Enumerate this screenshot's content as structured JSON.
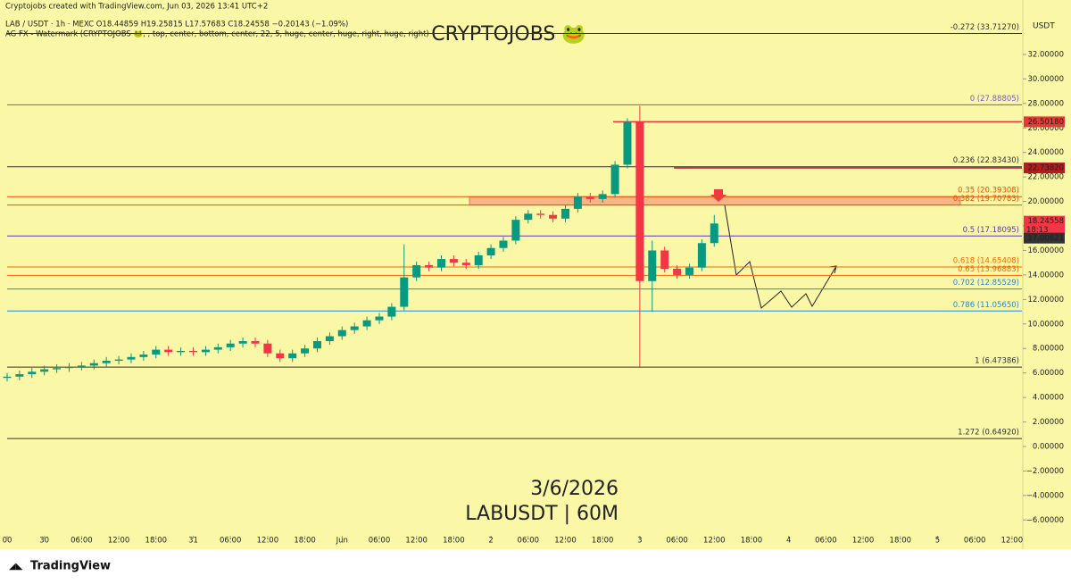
{
  "chart_data": {
    "type": "candlestick",
    "header": [
      "Cryptojobs created with TradingView.com, Jun 03, 2026 13:41 UTC+2",
      "LAB / USDT · 1h · MEXC  O18.44859 H19.25815 L17.57683 C18.24558 −0.20143 (−1.09%)",
      "AG FX - Watermark (CRYPTOJOBS 🐸, , top, center, bottom, center, 22, 5, huge, center, huge, right, huge, right)"
    ],
    "watermark": "CRYPTOJOBS 🐸",
    "date_text": "3/6/2026",
    "symbol_text": "LABUSDT | 60M",
    "currency": "USDT",
    "brand": "TradingView",
    "up_color": "#089981",
    "down_color": "#f23645",
    "x": [
      0,
      2,
      4,
      6,
      8,
      10,
      12,
      14,
      16,
      18,
      20,
      22,
      24,
      26,
      28,
      30,
      32,
      34,
      36,
      38,
      40,
      42,
      44,
      46,
      48,
      50,
      52,
      54,
      56,
      58,
      60,
      62,
      64,
      66,
      68,
      70,
      72,
      74,
      76,
      78,
      80,
      82,
      84,
      86,
      88,
      90,
      92,
      94,
      96,
      98,
      100,
      102,
      104,
      106,
      108,
      110,
      112,
      114
    ],
    "open": [
      5.6,
      5.7,
      5.9,
      6.1,
      6.3,
      6.4,
      6.5,
      6.6,
      6.8,
      7.0,
      7.1,
      7.3,
      7.5,
      7.9,
      7.7,
      7.8,
      7.7,
      7.9,
      8.1,
      8.4,
      8.6,
      8.4,
      7.6,
      7.2,
      7.6,
      8.0,
      8.6,
      9.0,
      9.5,
      9.8,
      10.3,
      10.6,
      11.4,
      13.8,
      14.8,
      14.6,
      15.3,
      15.0,
      14.8,
      15.6,
      16.2,
      16.8,
      18.5,
      19.0,
      18.9,
      18.6,
      19.4,
      20.4,
      20.2,
      20.6,
      23.0,
      26.5,
      13.5,
      16.0,
      14.5,
      14.0,
      14.6,
      16.6
    ],
    "high": [
      6.0,
      6.2,
      6.4,
      6.6,
      6.7,
      6.8,
      6.9,
      7.1,
      7.3,
      7.4,
      7.6,
      7.8,
      8.2,
      8.2,
      8.1,
      8.1,
      8.2,
      8.4,
      8.7,
      8.9,
      8.9,
      8.7,
      7.9,
      7.9,
      8.3,
      8.9,
      9.3,
      9.8,
      10.1,
      10.6,
      10.9,
      11.7,
      16.5,
      15.1,
      15.1,
      15.6,
      15.6,
      15.3,
      15.9,
      16.5,
      17.1,
      18.8,
      19.3,
      19.3,
      19.2,
      19.7,
      20.7,
      20.7,
      20.9,
      23.3,
      26.8,
      27.8,
      16.8,
      16.3,
      14.8,
      14.9,
      16.9,
      18.9
    ],
    "low": [
      5.3,
      5.4,
      5.6,
      5.8,
      6.0,
      6.1,
      6.2,
      6.3,
      6.5,
      6.7,
      6.8,
      7.0,
      7.2,
      7.4,
      7.4,
      7.4,
      7.4,
      7.6,
      7.8,
      8.1,
      8.1,
      7.3,
      6.9,
      6.9,
      7.3,
      7.7,
      8.3,
      8.7,
      9.2,
      9.5,
      10.0,
      10.3,
      11.1,
      13.5,
      14.3,
      14.3,
      14.7,
      14.5,
      14.5,
      15.3,
      15.9,
      16.5,
      18.2,
      18.6,
      18.3,
      18.3,
      19.1,
      19.9,
      19.9,
      20.3,
      22.7,
      6.5,
      11.0,
      14.2,
      13.7,
      13.7,
      14.3,
      16.3
    ],
    "close": [
      5.7,
      5.9,
      6.1,
      6.3,
      6.4,
      6.5,
      6.6,
      6.8,
      7.0,
      7.1,
      7.3,
      7.5,
      7.9,
      7.7,
      7.8,
      7.7,
      7.9,
      8.1,
      8.4,
      8.6,
      8.4,
      7.6,
      7.2,
      7.6,
      8.0,
      8.6,
      9.0,
      9.5,
      9.8,
      10.3,
      10.6,
      11.4,
      13.8,
      14.8,
      14.6,
      15.3,
      15.0,
      14.8,
      15.6,
      16.2,
      16.8,
      18.5,
      19.0,
      18.9,
      18.6,
      19.4,
      20.4,
      20.2,
      20.6,
      23.0,
      26.5,
      13.5,
      16.0,
      14.5,
      14.0,
      14.6,
      16.6,
      18.2
    ],
    "xlim": [
      -1.15,
      163.6
    ],
    "ylim": [
      -7.29,
      34.84
    ],
    "xticks": [
      {
        "value": 0,
        "label": "00"
      },
      {
        "value": 6,
        "label": "30"
      },
      {
        "value": 12,
        "label": "06:00"
      },
      {
        "value": 18,
        "label": "12:00"
      },
      {
        "value": 24,
        "label": "18:00"
      },
      {
        "value": 30,
        "label": "31"
      },
      {
        "value": 36,
        "label": "06:00"
      },
      {
        "value": 42,
        "label": "12:00"
      },
      {
        "value": 48,
        "label": "18:00"
      },
      {
        "value": 54,
        "label": "Jun"
      },
      {
        "value": 60,
        "label": "06:00"
      },
      {
        "value": 66,
        "label": "12:00"
      },
      {
        "value": 72,
        "label": "18:00"
      },
      {
        "value": 78,
        "label": "2"
      },
      {
        "value": 84,
        "label": "06:00"
      },
      {
        "value": 90,
        "label": "12:00"
      },
      {
        "value": 96,
        "label": "18:00"
      },
      {
        "value": 102,
        "label": "3"
      },
      {
        "value": 108,
        "label": "06:00"
      },
      {
        "value": 114,
        "label": "12:00"
      },
      {
        "value": 120,
        "label": "18:00"
      },
      {
        "value": 126,
        "label": "4"
      },
      {
        "value": 132,
        "label": "06:00"
      },
      {
        "value": 138,
        "label": "12:00"
      },
      {
        "value": 144,
        "label": "18:00"
      },
      {
        "value": 150,
        "label": "5"
      },
      {
        "value": 156,
        "label": "06:00"
      },
      {
        "value": 162,
        "label": "12:00"
      }
    ],
    "yticks": [
      {
        "value": 32,
        "label": "32.00000"
      },
      {
        "value": 30,
        "label": "30.00000"
      },
      {
        "value": 28,
        "label": "28.00000"
      },
      {
        "value": 26,
        "label": "26.00000"
      },
      {
        "value": 24,
        "label": "24.00000"
      },
      {
        "value": 22,
        "label": "22.00000"
      },
      {
        "value": 20,
        "label": "20.00000"
      },
      {
        "value": 18,
        "label": "18.00000"
      },
      {
        "value": 16,
        "label": "16.00000"
      },
      {
        "value": 14,
        "label": "14.00000"
      },
      {
        "value": 12,
        "label": "12.00000"
      },
      {
        "value": 10,
        "label": "10.00000"
      },
      {
        "value": 8,
        "label": "8.00000"
      },
      {
        "value": 6,
        "label": "6.00000"
      },
      {
        "value": 4,
        "label": "4.00000"
      },
      {
        "value": 2,
        "label": "2.00000"
      },
      {
        "value": 0,
        "label": "0.00000"
      },
      {
        "value": -2,
        "label": "−2.00000"
      },
      {
        "value": -4,
        "label": "−4.00000"
      },
      {
        "value": -6,
        "label": "−6.00000"
      }
    ],
    "fib_levels": [
      {
        "value": 33.7127,
        "label": "-0.272 (33.71270)",
        "color": "#333333"
      },
      {
        "value": 27.88805,
        "label": "0 (27.88805)",
        "color": "#7e57c2"
      },
      {
        "value": 22.8343,
        "label": "0.236 (22.83430)",
        "color": "#333333"
      },
      {
        "value": 20.39308,
        "label": "0.35 (20.39308)",
        "color": "#e65100"
      },
      {
        "value": 19.70783,
        "label": "0.382 (19.70783)",
        "color": "#e65100"
      },
      {
        "value": 17.18095,
        "label": "0.5 (17.18095)",
        "color": "#5e35b1"
      },
      {
        "value": 14.65408,
        "label": "0.618 (14.65408)",
        "color": "#ef6c00"
      },
      {
        "value": 13.96883,
        "label": "0.65 (13.96883)",
        "color": "#ef6c00"
      },
      {
        "value": 12.85529,
        "label": "0.702 (12.85529)",
        "color": "#1e88e5"
      },
      {
        "value": 11.0565,
        "label": "0.786 (11.05650)",
        "color": "#1e88e5"
      },
      {
        "value": 6.47386,
        "label": "1 (6.47386)",
        "color": "#333333"
      },
      {
        "value": 0.6492,
        "label": "1.272 (0.64920)",
        "color": "#333333"
      }
    ],
    "levels": [
      {
        "value": 26.5018,
        "label": "26.50180",
        "color": "#e53935",
        "start": 97.7
      },
      {
        "value": 22.7382,
        "label": "22.73820",
        "color": "#b71c1c",
        "start": 107.5
      }
    ],
    "price_badges": [
      {
        "value": 18.24558,
        "label": "18.24558",
        "sub": "18:13",
        "color": "#f23645"
      },
      {
        "value": 17.00621,
        "label": "17.00621",
        "color": "#333333"
      }
    ]
  }
}
